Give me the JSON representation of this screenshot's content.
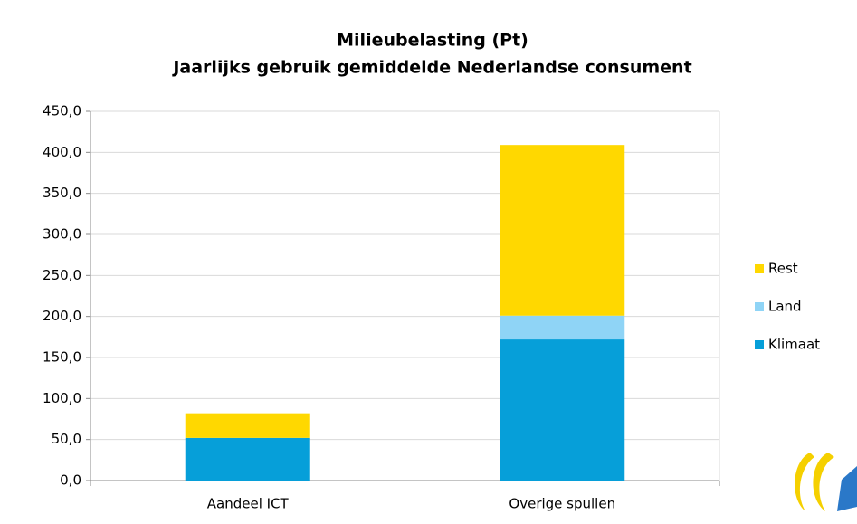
{
  "chart_data": {
    "type": "stacked_bar",
    "title": "Milieubelasting (Pt)",
    "subtitle": "Jaarlijks gebruik gemiddelde Nederlandse consument",
    "categories": [
      "Aandeel ICT",
      "Overige spullen"
    ],
    "series": [
      {
        "name": "Klimaat",
        "color": "#069fd9",
        "values": [
          52,
          172
        ]
      },
      {
        "name": "Land",
        "color": "#8fd4f6",
        "values": [
          0,
          29
        ]
      },
      {
        "name": "Rest",
        "color": "#ffd800",
        "values": [
          30,
          208
        ]
      }
    ],
    "ylim": [
      0,
      450
    ],
    "yticks": [
      {
        "value": 0,
        "label": "0,0"
      },
      {
        "value": 50,
        "label": "50,0"
      },
      {
        "value": 100,
        "label": "100,0"
      },
      {
        "value": 150,
        "label": "150,0"
      },
      {
        "value": 200,
        "label": "200,0"
      },
      {
        "value": 250,
        "label": "250,0"
      },
      {
        "value": 300,
        "label": "300,0"
      },
      {
        "value": 350,
        "label": "350,0"
      },
      {
        "value": 400,
        "label": "400,0"
      },
      {
        "value": 450,
        "label": "450,0"
      }
    ],
    "grid": true,
    "legend": "right"
  }
}
